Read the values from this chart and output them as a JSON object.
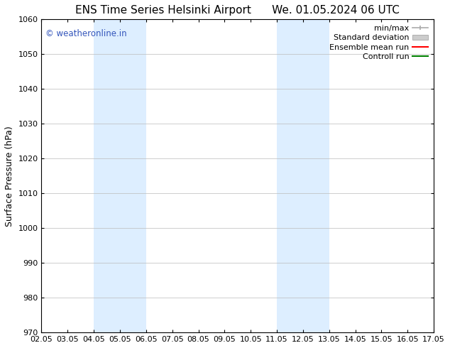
{
  "title": "ENS Time Series Helsinki Airport      We. 01.05.2024 06 UTC",
  "ylabel": "Surface Pressure (hPa)",
  "xlabel": "",
  "xlim": [
    2.05,
    17.05
  ],
  "ylim": [
    970,
    1060
  ],
  "yticks": [
    970,
    980,
    990,
    1000,
    1010,
    1020,
    1030,
    1040,
    1050,
    1060
  ],
  "xtick_labels": [
    "02.05",
    "03.05",
    "04.05",
    "05.05",
    "06.05",
    "07.05",
    "08.05",
    "09.05",
    "10.05",
    "11.05",
    "12.05",
    "13.05",
    "14.05",
    "15.05",
    "16.05",
    "17.05"
  ],
  "xtick_positions": [
    2.05,
    3.05,
    4.05,
    5.05,
    6.05,
    7.05,
    8.05,
    9.05,
    10.05,
    11.05,
    12.05,
    13.05,
    14.05,
    15.05,
    16.05,
    17.05
  ],
  "shaded_bands": [
    {
      "x_start": 4.05,
      "x_end": 6.05,
      "color": "#ddeeff"
    },
    {
      "x_start": 11.05,
      "x_end": 13.05,
      "color": "#ddeeff"
    }
  ],
  "legend_entries": [
    {
      "label": "min/max",
      "color": "#aaaaaa",
      "type": "line_with_caps"
    },
    {
      "label": "Standard deviation",
      "color": "#cccccc",
      "type": "bar"
    },
    {
      "label": "Ensemble mean run",
      "color": "red",
      "type": "line"
    },
    {
      "label": "Controll run",
      "color": "green",
      "type": "line"
    }
  ],
  "watermark_text": "© weatheronline.in",
  "watermark_color": "#3355bb",
  "background_color": "#ffffff",
  "grid_color": "#bbbbbb",
  "title_fontsize": 11,
  "axis_label_fontsize": 9,
  "tick_fontsize": 8,
  "legend_fontsize": 8
}
